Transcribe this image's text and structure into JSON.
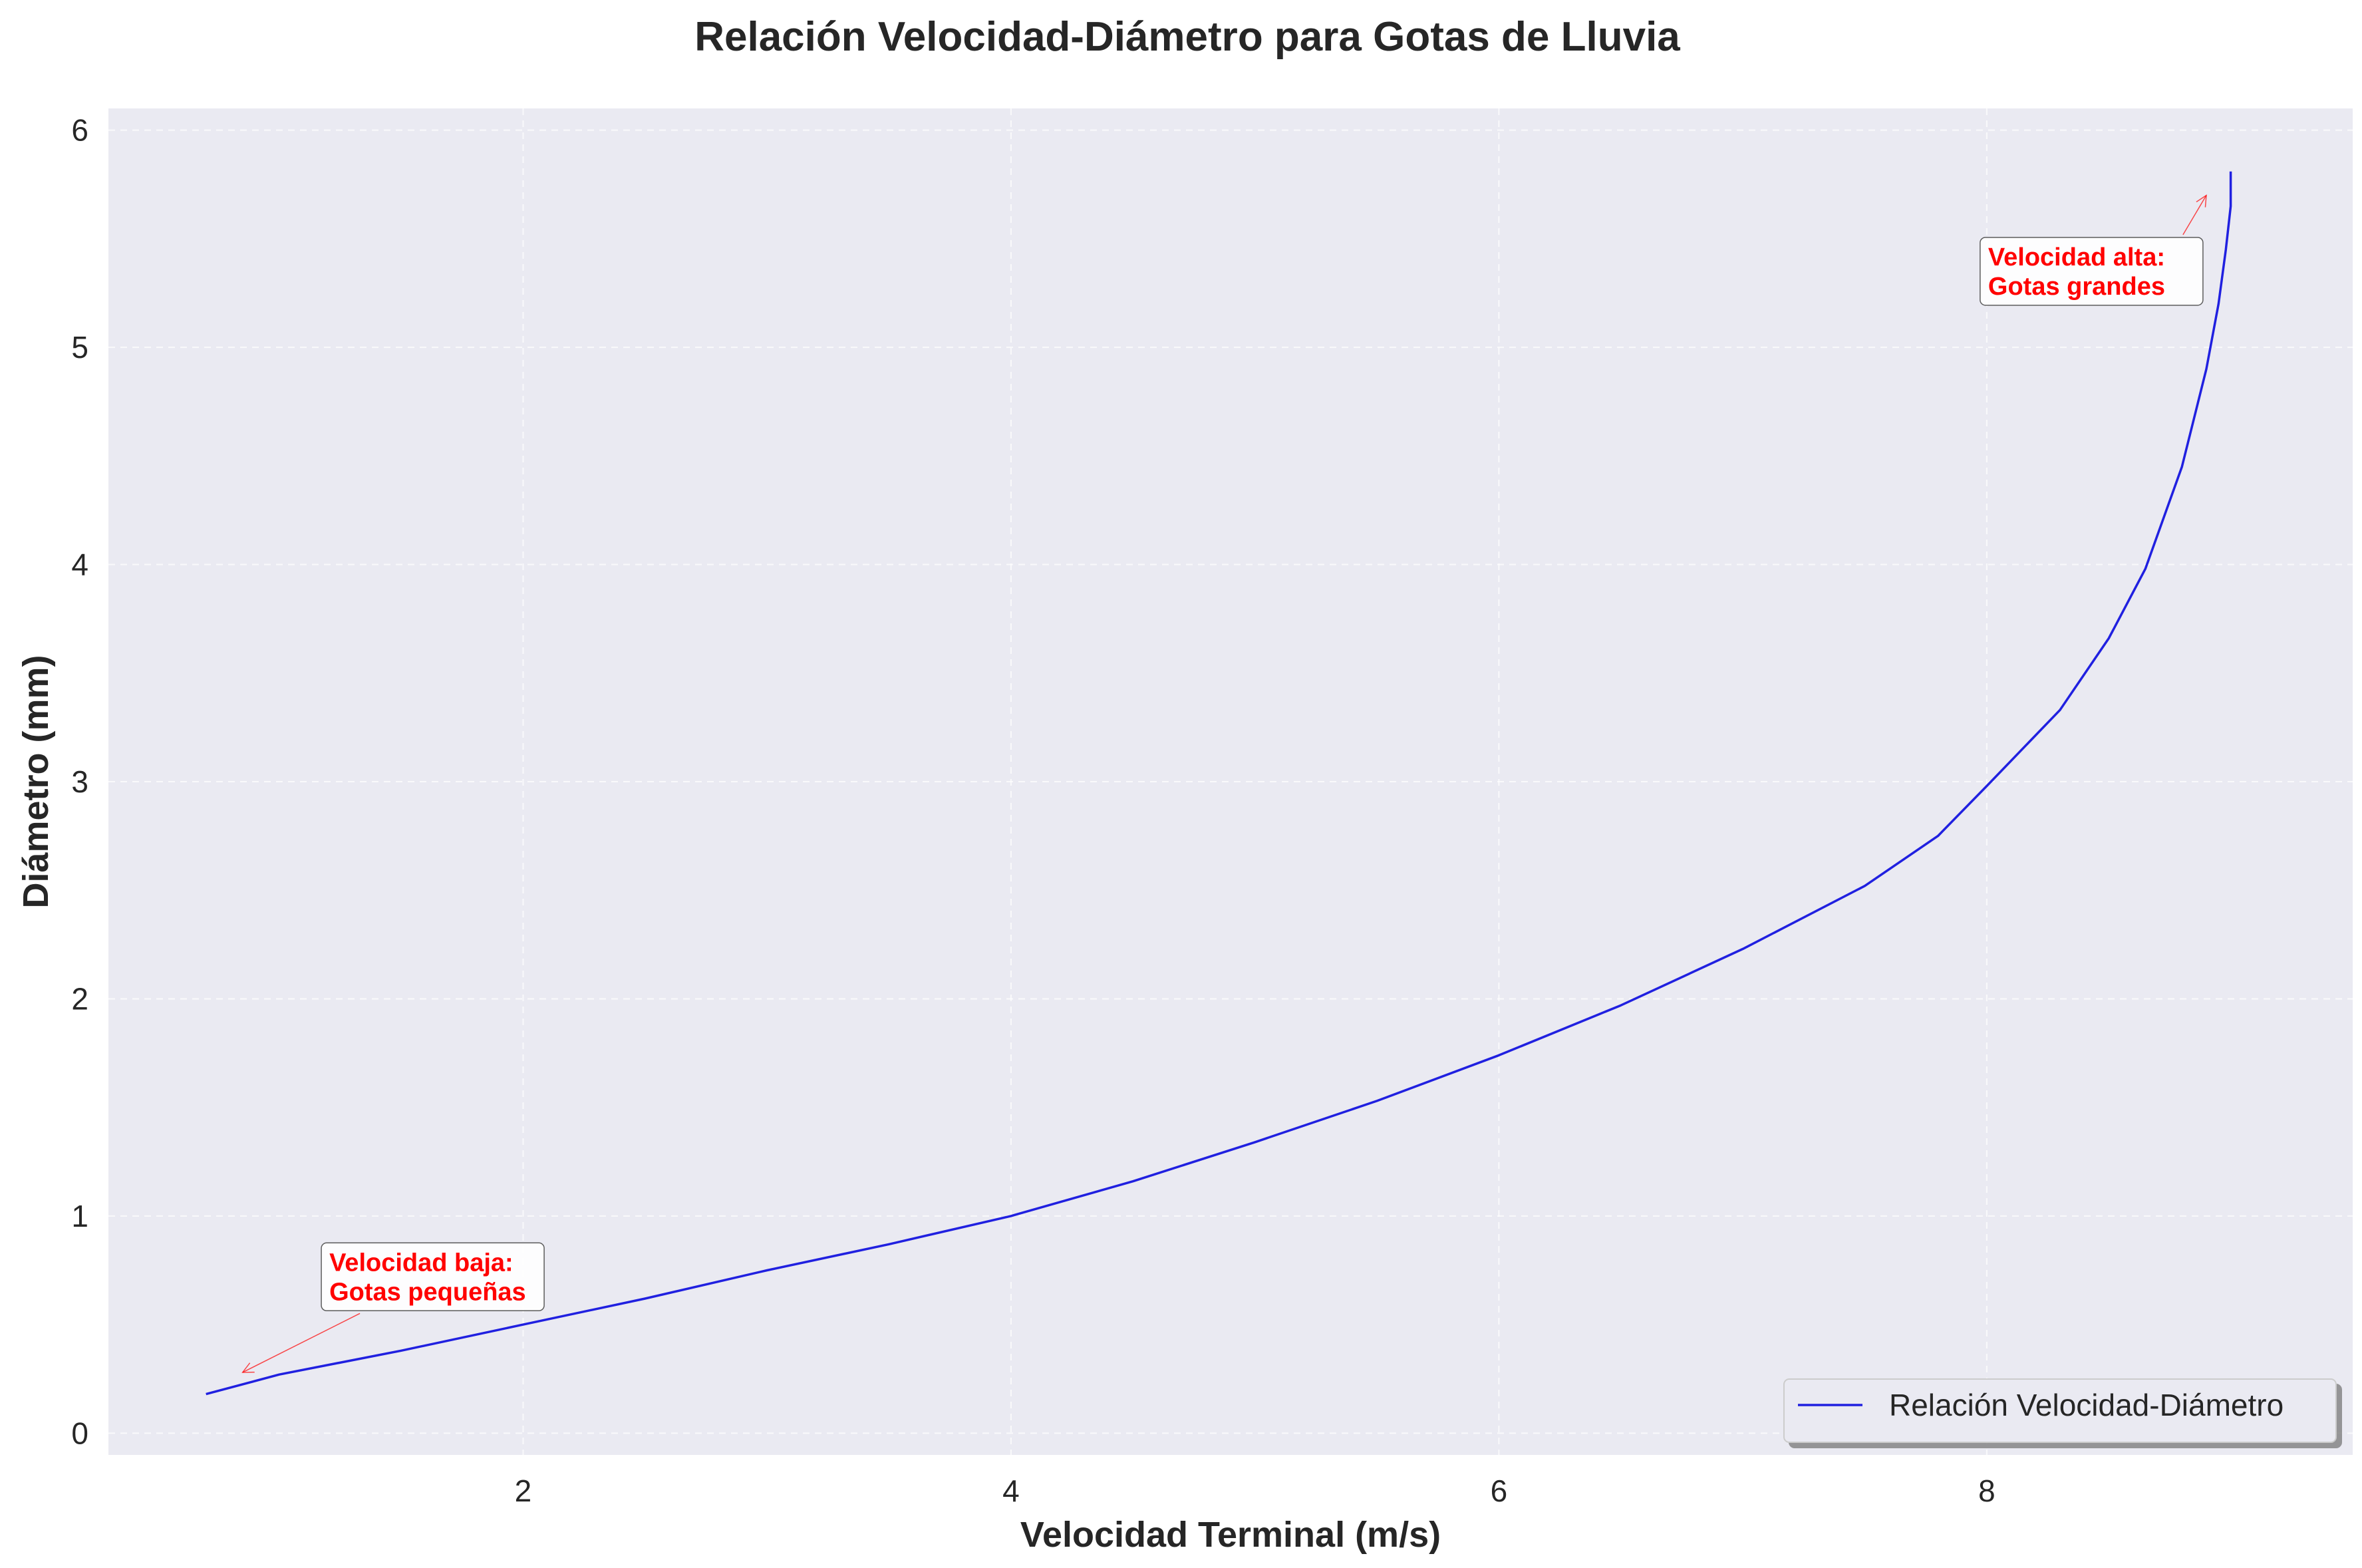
{
  "chart_data": {
    "type": "line",
    "title": "Relación Velocidad-Diámetro para Gotas de Lluvia",
    "xlabel": "Velocidad Terminal (m/s)",
    "ylabel": "Diámetro (mm)",
    "xlim": [
      0.3,
      9.5
    ],
    "ylim": [
      -0.1,
      6.1
    ],
    "xticks": [
      2,
      4,
      6,
      8
    ],
    "yticks": [
      0,
      1,
      2,
      3,
      4,
      5,
      6
    ],
    "xtick_labels": [
      "2",
      "4",
      "6",
      "8"
    ],
    "ytick_labels": [
      "0",
      "1",
      "2",
      "3",
      "4",
      "5",
      "6"
    ],
    "grid": true,
    "legend_position": "bottom-right",
    "series": [
      {
        "name": "Relación Velocidad-Diámetro",
        "color": "#2020e0",
        "x": [
          0.7,
          1.0,
          1.5,
          2.0,
          2.5,
          3.0,
          3.5,
          4.0,
          4.5,
          5.0,
          5.5,
          6.0,
          6.5,
          7.0,
          7.5,
          7.8,
          8.0,
          8.3,
          8.5,
          8.65,
          8.8,
          8.9,
          8.95,
          8.98,
          9.0,
          9.0
        ],
        "y": [
          0.18,
          0.27,
          0.38,
          0.5,
          0.62,
          0.75,
          0.87,
          1.0,
          1.16,
          1.34,
          1.53,
          1.74,
          1.97,
          2.23,
          2.52,
          2.75,
          2.98,
          3.33,
          3.66,
          3.98,
          4.45,
          4.9,
          5.2,
          5.45,
          5.65,
          5.81
        ]
      }
    ],
    "annotations": [
      {
        "id": "low",
        "line1": "Velocidad baja:",
        "line2": "Gotas pequeñas",
        "point": [
          0.85,
          0.28
        ],
        "text_at": [
          1.2,
          0.72
        ],
        "color": "#ff0000"
      },
      {
        "id": "high",
        "line1": "Velocidad alta:",
        "line2": "Gotas grandes",
        "point": [
          8.9,
          5.7
        ],
        "text_at": [
          8.0,
          5.35
        ],
        "color": "#ff0000"
      }
    ]
  },
  "colors": {
    "plot_background": "#eaeaf2",
    "page_background": "#ffffff",
    "annotation": "#ff0000",
    "line": "#2020e0"
  }
}
